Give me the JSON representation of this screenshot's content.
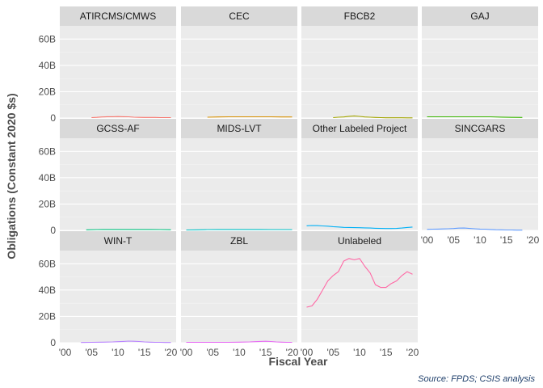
{
  "chart_data": {
    "type": "line",
    "xlabel": "Fiscal Year",
    "ylabel": "Obligations (Constant 2020 $s)",
    "caption": "Source: FPDS; CSIS analysis",
    "xlim": [
      2000,
      2020
    ],
    "ylim": [
      0,
      70
    ],
    "x_ticks": [
      2000,
      2005,
      2010,
      2015,
      2020
    ],
    "x_tick_labels": [
      "'00",
      "'05",
      "'10",
      "'15",
      "'20"
    ],
    "y_ticks": [
      0,
      20,
      40,
      60
    ],
    "y_tick_labels": [
      "0",
      "20B",
      "40B",
      "60B"
    ],
    "grid": true,
    "layout": "facet-grid-3x4",
    "panels": [
      {
        "name": "ATIRCMS/CMWS",
        "color": "#f8766d",
        "x": [
          2005,
          2006,
          2007,
          2008,
          2009,
          2010,
          2011,
          2012,
          2013,
          2014,
          2015,
          2016,
          2017,
          2018,
          2019,
          2020
        ],
        "values": [
          0.3,
          0.5,
          0.8,
          1.0,
          1.0,
          1.1,
          1.0,
          0.9,
          0.6,
          0.5,
          0.4,
          0.4,
          0.4,
          0.3,
          0.3,
          0.3
        ]
      },
      {
        "name": "CEC",
        "color": "#d89000",
        "x": [
          2004,
          2006,
          2008,
          2010,
          2012,
          2014,
          2016,
          2018,
          2020
        ],
        "values": [
          0.6,
          0.8,
          0.9,
          0.9,
          0.9,
          0.9,
          0.9,
          0.8,
          0.8
        ]
      },
      {
        "name": "FBCB2",
        "color": "#a3a500",
        "x": [
          2005,
          2006,
          2007,
          2008,
          2009,
          2010,
          2011,
          2012,
          2013,
          2014,
          2015,
          2016,
          2017,
          2018,
          2019,
          2020
        ],
        "values": [
          0.3,
          0.6,
          0.8,
          1.3,
          1.6,
          1.2,
          0.8,
          0.6,
          0.4,
          0.3,
          0.2,
          0.2,
          0.2,
          0.2,
          0.1,
          0.1
        ]
      },
      {
        "name": "GAJ",
        "color": "#39b600",
        "x": [
          2000,
          2002,
          2004,
          2006,
          2008,
          2010,
          2012,
          2014,
          2016,
          2018
        ],
        "values": [
          0.9,
          0.9,
          0.9,
          0.9,
          0.9,
          0.9,
          0.9,
          0.7,
          0.5,
          0.4
        ]
      },
      {
        "name": "GCSS-AF",
        "color": "#00bf7d",
        "x": [
          2004,
          2006,
          2008,
          2010,
          2012,
          2014,
          2016,
          2018,
          2020
        ],
        "values": [
          0.4,
          0.6,
          0.7,
          0.7,
          0.7,
          0.7,
          0.7,
          0.6,
          0.5
        ]
      },
      {
        "name": "MIDS-LVT",
        "color": "#00bfc4",
        "x": [
          2000,
          2002,
          2004,
          2006,
          2008,
          2010,
          2012,
          2014,
          2016,
          2018,
          2020
        ],
        "values": [
          0.3,
          0.4,
          0.6,
          0.7,
          0.7,
          0.7,
          0.7,
          0.7,
          0.6,
          0.6,
          0.6
        ]
      },
      {
        "name": "Other Labeled Project",
        "color": "#00b0f6",
        "x": [
          2000,
          2001,
          2002,
          2003,
          2004,
          2005,
          2006,
          2007,
          2008,
          2009,
          2010,
          2011,
          2012,
          2013,
          2014,
          2015,
          2016,
          2017,
          2018,
          2019,
          2020
        ],
        "values": [
          3.5,
          3.7,
          3.6,
          3.4,
          3.2,
          2.8,
          2.6,
          2.3,
          2.2,
          2.1,
          2.0,
          1.9,
          1.8,
          1.6,
          1.5,
          1.4,
          1.4,
          1.5,
          1.8,
          2.2,
          2.5
        ]
      },
      {
        "name": "SINCGARS",
        "color": "#619cff",
        "x": [
          2000,
          2001,
          2002,
          2003,
          2004,
          2005,
          2006,
          2007,
          2008,
          2009,
          2010,
          2011,
          2012,
          2013,
          2014,
          2015,
          2016,
          2017,
          2018
        ],
        "values": [
          0.8,
          0.9,
          1.0,
          1.1,
          1.2,
          1.4,
          1.7,
          1.8,
          1.5,
          1.2,
          1.0,
          0.9,
          0.7,
          0.5,
          0.4,
          0.3,
          0.3,
          0.2,
          0.2
        ]
      },
      {
        "name": "WIN-T",
        "color": "#b983ff",
        "x": [
          2003,
          2005,
          2007,
          2009,
          2010,
          2011,
          2012,
          2013,
          2014,
          2015,
          2016,
          2017,
          2018,
          2019,
          2020
        ],
        "values": [
          0.2,
          0.3,
          0.4,
          0.6,
          0.8,
          1.0,
          1.2,
          1.1,
          0.9,
          0.6,
          0.4,
          0.3,
          0.3,
          0.2,
          0.2
        ]
      },
      {
        "name": "ZBL",
        "color": "#e76bf3",
        "x": [
          2000,
          2002,
          2004,
          2006,
          2008,
          2010,
          2012,
          2013,
          2014,
          2015,
          2016,
          2017,
          2018,
          2019,
          2020
        ],
        "values": [
          0.3,
          0.3,
          0.3,
          0.3,
          0.3,
          0.4,
          0.6,
          0.8,
          1.0,
          1.1,
          0.9,
          0.6,
          0.4,
          0.3,
          0.3
        ]
      },
      {
        "name": "Unlabeled",
        "color": "#ff67a4",
        "x": [
          2000,
          2001,
          2002,
          2003,
          2004,
          2005,
          2006,
          2007,
          2008,
          2009,
          2010,
          2011,
          2012,
          2013,
          2014,
          2015,
          2016,
          2017,
          2018,
          2019,
          2020
        ],
        "values": [
          27,
          28,
          33,
          40,
          47,
          51,
          54,
          62,
          64,
          63,
          64,
          58,
          53,
          44,
          42,
          42,
          45,
          47,
          51,
          54,
          52
        ]
      }
    ]
  }
}
